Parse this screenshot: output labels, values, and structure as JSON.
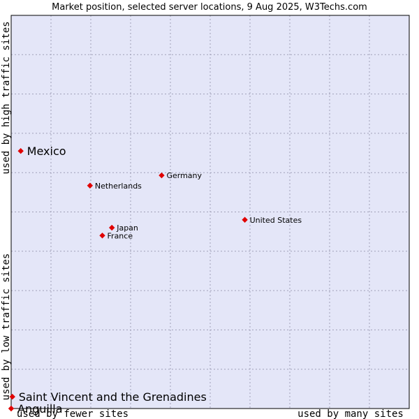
{
  "chart_data": {
    "type": "scatter",
    "title": "Market position, selected server locations, 9 Aug 2025, W3Techs.com",
    "xlabel_left": "used by fewer sites",
    "xlabel_right": "used by many sites",
    "ylabel_bottom": "used by low traffic sites",
    "ylabel_top": "used by high traffic sites",
    "xlim": [
      0,
      100
    ],
    "ylim": [
      0,
      100
    ],
    "grid": true,
    "colors": {
      "plot_bg": "#e4e6f8",
      "marker": "#e00000",
      "grid": "#a0a0b8",
      "frame": "#000000"
    },
    "points": [
      {
        "label": "Mexico",
        "x": 2.4,
        "y": 65.5,
        "size": "large"
      },
      {
        "label": "Germany",
        "x": 37.8,
        "y": 59.3,
        "size": "small"
      },
      {
        "label": "Netherlands",
        "x": 19.8,
        "y": 56.7,
        "size": "small"
      },
      {
        "label": "United States",
        "x": 58.7,
        "y": 48.0,
        "size": "small"
      },
      {
        "label": "Japan",
        "x": 25.3,
        "y": 46.0,
        "size": "small"
      },
      {
        "label": "France",
        "x": 22.9,
        "y": 44.0,
        "size": "small"
      },
      {
        "label": "Saint Vincent and the Grenadines",
        "x": 0.3,
        "y": 3.0,
        "size": "large"
      },
      {
        "label": "Anguilla",
        "x": 0.0,
        "y": 0.0,
        "size": "large"
      }
    ]
  }
}
